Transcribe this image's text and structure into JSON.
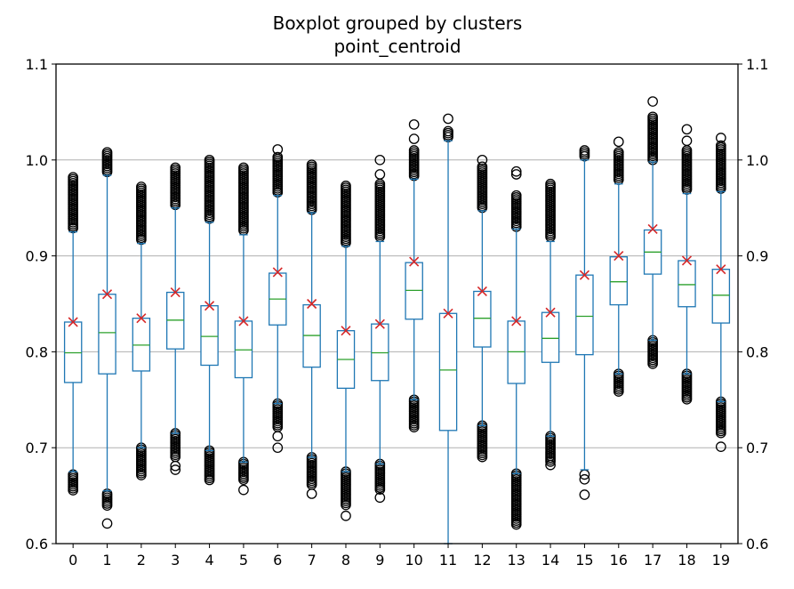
{
  "chart_data": {
    "type": "boxplot",
    "title": "Boxplot grouped by clusters",
    "subtitle": "point_centroid",
    "xlabel": "",
    "ylabel": "",
    "ylim": [
      0.6,
      1.1
    ],
    "yticks": [
      "0.6",
      "0.7",
      "0.8",
      "0.9",
      "1.0",
      "1.1"
    ],
    "grid": "horizontal",
    "secondary_y_axis": true,
    "colors": {
      "box": "#1f77b4",
      "median": "#2ca02c",
      "mean_marker": "#d62728",
      "flier": "#000000",
      "grid": "#b0b0b0"
    },
    "categories": [
      "0",
      "1",
      "2",
      "3",
      "4",
      "5",
      "6",
      "7",
      "8",
      "9",
      "10",
      "11",
      "12",
      "13",
      "14",
      "15",
      "16",
      "17",
      "18",
      "19"
    ],
    "boxes": [
      {
        "q1": 0.768,
        "median": 0.799,
        "q3": 0.831,
        "whisker_low": 0.675,
        "whisker_high": 0.925,
        "mean": 0.831,
        "fliers_low": [
          0.655,
          0.672
        ],
        "fliers_high": [
          0.928,
          0.982
        ]
      },
      {
        "q1": 0.777,
        "median": 0.82,
        "q3": 0.86,
        "whisker_low": 0.655,
        "whisker_high": 0.984,
        "mean": 0.86,
        "fliers_low": [
          0.638,
          0.652
        ],
        "fliers_high": [
          0.986,
          1.008
        ],
        "extra_fliers": [
          0.621
        ]
      },
      {
        "q1": 0.78,
        "median": 0.807,
        "q3": 0.835,
        "whisker_low": 0.7,
        "whisker_high": 0.913,
        "mean": 0.835,
        "fliers_low": [
          0.67,
          0.7
        ],
        "fliers_high": [
          0.915,
          0.972
        ]
      },
      {
        "q1": 0.803,
        "median": 0.833,
        "q3": 0.862,
        "whisker_low": 0.715,
        "whisker_high": 0.95,
        "mean": 0.862,
        "fliers_low": [
          0.69,
          0.715
        ],
        "fliers_high": [
          0.952,
          0.992
        ],
        "extra_fliers": [
          0.677,
          0.681
        ]
      },
      {
        "q1": 0.786,
        "median": 0.816,
        "q3": 0.848,
        "whisker_low": 0.697,
        "whisker_high": 0.935,
        "mean": 0.848,
        "fliers_low": [
          0.665,
          0.697
        ],
        "fliers_high": [
          0.938,
          1.0
        ]
      },
      {
        "q1": 0.773,
        "median": 0.802,
        "q3": 0.832,
        "whisker_low": 0.685,
        "whisker_high": 0.922,
        "mean": 0.832,
        "fliers_low": [
          0.665,
          0.685
        ],
        "fliers_high": [
          0.925,
          0.992
        ],
        "extra_fliers": [
          0.656
        ]
      },
      {
        "q1": 0.828,
        "median": 0.855,
        "q3": 0.882,
        "whisker_low": 0.746,
        "whisker_high": 0.963,
        "mean": 0.883,
        "fliers_low": [
          0.72,
          0.746
        ],
        "fliers_high": [
          0.966,
          1.003
        ],
        "extra_fliers": [
          0.7,
          0.712,
          1.011
        ]
      },
      {
        "q1": 0.784,
        "median": 0.817,
        "q3": 0.849,
        "whisker_low": 0.69,
        "whisker_high": 0.945,
        "mean": 0.85,
        "fliers_low": [
          0.66,
          0.69
        ],
        "fliers_high": [
          0.948,
          0.995
        ],
        "extra_fliers": [
          0.652
        ]
      },
      {
        "q1": 0.762,
        "median": 0.792,
        "q3": 0.822,
        "whisker_low": 0.675,
        "whisker_high": 0.91,
        "mean": 0.822,
        "fliers_low": [
          0.64,
          0.675
        ],
        "fliers_high": [
          0.912,
          0.973
        ],
        "extra_fliers": [
          0.629
        ]
      },
      {
        "q1": 0.77,
        "median": 0.799,
        "q3": 0.829,
        "whisker_low": 0.683,
        "whisker_high": 0.915,
        "mean": 0.829,
        "fliers_low": [
          0.655,
          0.683
        ],
        "fliers_high": [
          0.918,
          0.975
        ],
        "extra_fliers": [
          0.648,
          0.985,
          1.0
        ]
      },
      {
        "q1": 0.834,
        "median": 0.864,
        "q3": 0.893,
        "whisker_low": 0.75,
        "whisker_high": 0.98,
        "mean": 0.894,
        "fliers_low": [
          0.72,
          0.75
        ],
        "fliers_high": [
          0.982,
          1.01
        ],
        "extra_fliers": [
          1.022,
          1.037
        ]
      },
      {
        "q1": 0.718,
        "median": 0.781,
        "q3": 0.84,
        "whisker_low": 0.6,
        "whisker_high": 1.02,
        "mean": 0.84,
        "fliers_low": [],
        "fliers_high": [
          1.023,
          1.03
        ],
        "extra_fliers": [
          1.043
        ]
      },
      {
        "q1": 0.805,
        "median": 0.835,
        "q3": 0.863,
        "whisker_low": 0.723,
        "whisker_high": 0.947,
        "mean": 0.863,
        "fliers_low": [
          0.69,
          0.723
        ],
        "fliers_high": [
          0.95,
          0.993
        ],
        "extra_fliers": [
          1.0
        ]
      },
      {
        "q1": 0.767,
        "median": 0.8,
        "q3": 0.832,
        "whisker_low": 0.673,
        "whisker_high": 0.928,
        "mean": 0.832,
        "fliers_low": [
          0.618,
          0.673
        ],
        "fliers_high": [
          0.93,
          0.963
        ],
        "extra_fliers": [
          0.985,
          0.988
        ]
      },
      {
        "q1": 0.789,
        "median": 0.814,
        "q3": 0.841,
        "whisker_low": 0.712,
        "whisker_high": 0.915,
        "mean": 0.841,
        "fliers_low": [
          0.685,
          0.712
        ],
        "fliers_high": [
          0.918,
          0.975
        ],
        "extra_fliers": [
          0.682
        ]
      },
      {
        "q1": 0.797,
        "median": 0.837,
        "q3": 0.88,
        "whisker_low": 0.677,
        "whisker_high": 1.0,
        "mean": 0.88,
        "fliers_low": [],
        "fliers_high": [
          1.003,
          1.01
        ],
        "extra_fliers": [
          0.651,
          0.667,
          0.672
        ]
      },
      {
        "q1": 0.849,
        "median": 0.873,
        "q3": 0.899,
        "whisker_low": 0.777,
        "whisker_high": 0.975,
        "mean": 0.9,
        "fliers_low": [
          0.757,
          0.777
        ],
        "fliers_high": [
          0.978,
          1.008
        ],
        "extra_fliers": [
          1.019
        ]
      },
      {
        "q1": 0.881,
        "median": 0.904,
        "q3": 0.927,
        "whisker_low": 0.812,
        "whisker_high": 0.998,
        "mean": 0.928,
        "fliers_low": [
          0.787,
          0.812
        ],
        "fliers_high": [
          1.0,
          1.045
        ],
        "extra_fliers": [
          1.061
        ]
      },
      {
        "q1": 0.847,
        "median": 0.87,
        "q3": 0.895,
        "whisker_low": 0.777,
        "whisker_high": 0.965,
        "mean": 0.895,
        "fliers_low": [
          0.75,
          0.777
        ],
        "fliers_high": [
          0.968,
          1.01
        ],
        "extra_fliers": [
          1.02,
          1.032
        ]
      },
      {
        "q1": 0.83,
        "median": 0.859,
        "q3": 0.886,
        "whisker_low": 0.748,
        "whisker_high": 0.967,
        "mean": 0.886,
        "fliers_low": [
          0.715,
          0.748
        ],
        "fliers_high": [
          0.97,
          1.015
        ],
        "extra_fliers": [
          0.701,
          1.023
        ]
      }
    ]
  }
}
